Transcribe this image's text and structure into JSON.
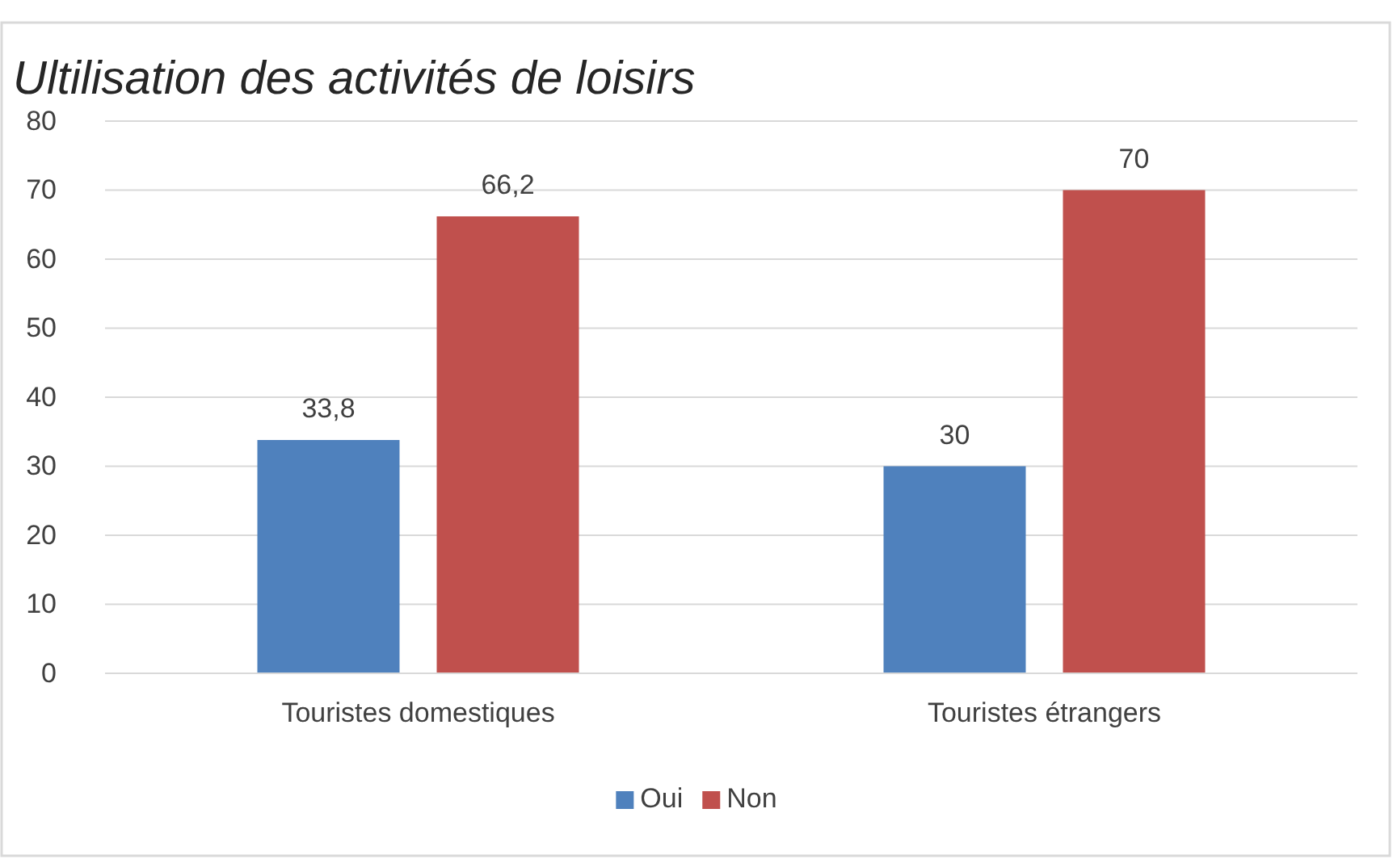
{
  "chart_data": {
    "type": "bar",
    "title": "Ultilisation des activités de loisirs",
    "categories": [
      "Touristes domestiques",
      "Touristes étrangers"
    ],
    "series": [
      {
        "name": "Oui",
        "color": "#4f81bd",
        "values": [
          33.8,
          30
        ],
        "value_labels": [
          "33,8",
          "30"
        ]
      },
      {
        "name": "Non",
        "color": "#c0504d",
        "values": [
          66.2,
          70
        ],
        "value_labels": [
          "66,2",
          "70"
        ]
      }
    ],
    "ylim": [
      0,
      80
    ],
    "yticks": [
      0,
      10,
      20,
      30,
      40,
      50,
      60,
      70,
      80
    ],
    "grid": "y",
    "legend": "bottom"
  }
}
